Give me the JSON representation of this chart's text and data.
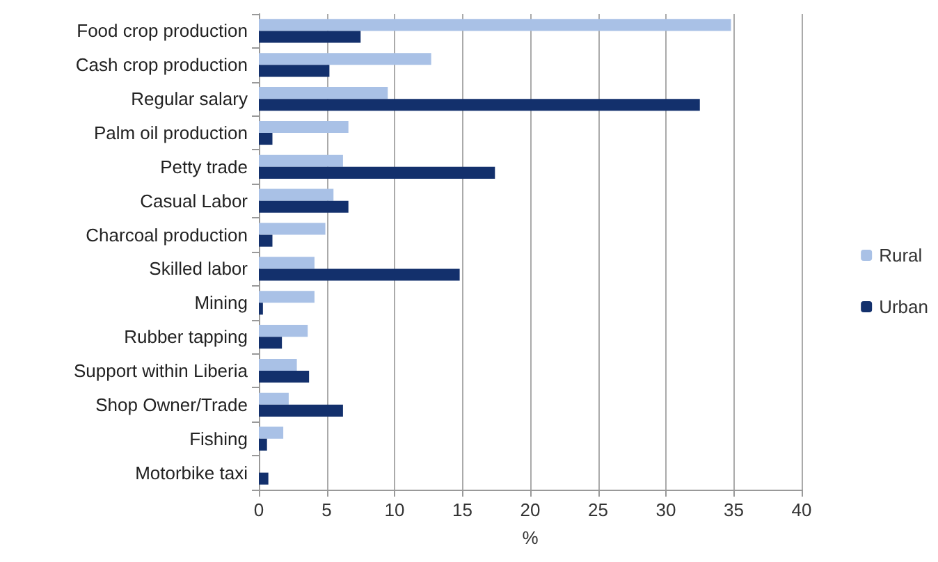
{
  "chart_data": {
    "type": "bar",
    "orientation": "horizontal",
    "xlabel": "%",
    "categories": [
      "Food crop production",
      "Cash crop production",
      "Regular salary",
      "Palm oil production",
      "Petty trade",
      "Casual Labor",
      "Charcoal production",
      "Skilled labor",
      "Mining",
      "Rubber tapping",
      "Support within Liberia",
      "Shop Owner/Trade",
      "Fishing",
      "Motorbike taxi"
    ],
    "series": [
      {
        "name": "Rural",
        "color": "#a9c1e6",
        "values": [
          34.8,
          12.7,
          9.5,
          6.6,
          6.2,
          5.5,
          4.9,
          4.1,
          4.1,
          3.6,
          2.8,
          2.2,
          1.8,
          0
        ]
      },
      {
        "name": "Urban",
        "color": "#13306c",
        "values": [
          7.5,
          5.2,
          32.5,
          1.0,
          17.4,
          6.6,
          1.0,
          14.8,
          0.3,
          1.7,
          3.7,
          6.2,
          0.6,
          0.7
        ]
      }
    ],
    "xlim": [
      0,
      40
    ],
    "xticks": [
      0,
      5,
      10,
      15,
      20,
      25,
      30,
      35,
      40
    ],
    "grid": "x",
    "legend": "right"
  }
}
